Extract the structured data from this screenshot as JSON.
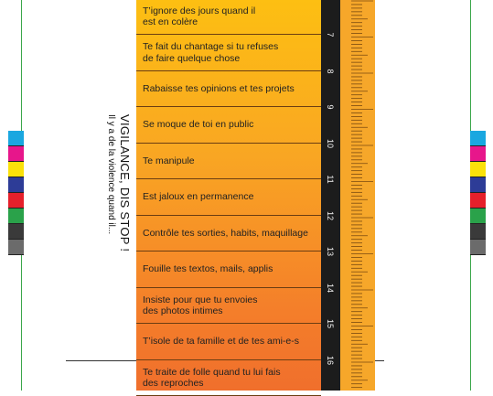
{
  "title": "VIGILANCE, DIS STOP !",
  "subtitle": "Il y a de la violence quand il...",
  "behaviours": [
    {
      "lines": [
        "T’ignore des jours quand il",
        "est en colère"
      ]
    },
    {
      "lines": [
        "Te fait du chantage si tu refuses",
        "de faire quelque chose"
      ]
    },
    {
      "lines": [
        "Rabaisse tes opinions et tes projets"
      ]
    },
    {
      "lines": [
        "Se moque de toi en public"
      ]
    },
    {
      "lines": [
        "Te manipule"
      ]
    },
    {
      "lines": [
        "Est jaloux en permanence"
      ]
    },
    {
      "lines": [
        "Contrôle tes sorties, habits, maquillage"
      ]
    },
    {
      "lines": [
        "Fouille tes textos, mails, applis"
      ]
    },
    {
      "lines": [
        "Insiste pour que tu envoies",
        "des photos intimes"
      ]
    },
    {
      "lines": [
        "T’isole de ta famille et de tes ami-e-s"
      ]
    },
    {
      "lines": [
        "Te traite de folle quand tu lui fais",
        "des reproches"
      ]
    }
  ],
  "ruler_numbers": [
    "7",
    "8",
    "9",
    "10",
    "11",
    "12",
    "13",
    "14",
    "15",
    "16"
  ],
  "colors": {
    "panel_top": "#fdbf12",
    "panel_bottom": "#f06f2c",
    "ruler": "#1c1c1c",
    "guide": "#3aa64a"
  },
  "color_swatches": [
    "#1aa7e0",
    "#e7168b",
    "#fbe10a",
    "#2d3c97",
    "#e5202b",
    "#2aa24a",
    "#3a3a3a",
    "#6b6b6b"
  ]
}
